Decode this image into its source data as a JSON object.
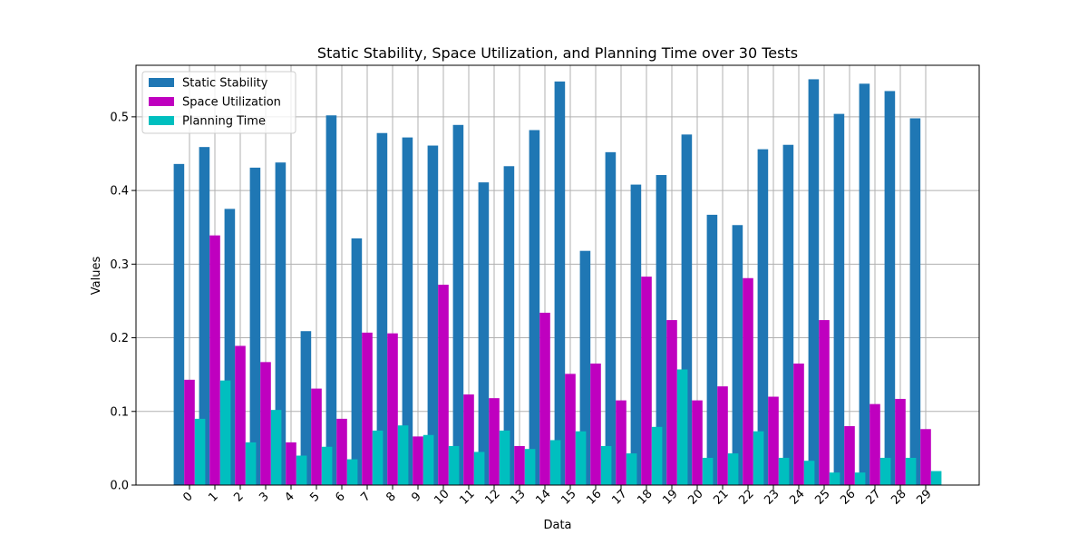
{
  "chart_data": {
    "type": "bar",
    "title": "Static Stability, Space Utilization, and Planning Time over 30 Tests",
    "xlabel": "Data",
    "ylabel": "Values",
    "ylim": [
      0,
      0.57
    ],
    "yticks": [
      0.0,
      0.1,
      0.2,
      0.3,
      0.4,
      0.5
    ],
    "ytick_labels": [
      "0.0",
      "0.1",
      "0.2",
      "0.3",
      "0.4",
      "0.5"
    ],
    "grid": true,
    "legend_position": "top-left",
    "categories": [
      "0",
      "1",
      "2",
      "3",
      "4",
      "5",
      "6",
      "7",
      "8",
      "9",
      "10",
      "11",
      "12",
      "13",
      "14",
      "15",
      "16",
      "17",
      "18",
      "19",
      "20",
      "21",
      "22",
      "23",
      "24",
      "25",
      "26",
      "27",
      "28",
      "29"
    ],
    "series": [
      {
        "name": "Static Stability",
        "color": "#1f77b4",
        "values": [
          0.436,
          0.459,
          0.375,
          0.431,
          0.438,
          0.209,
          0.502,
          0.335,
          0.478,
          0.472,
          0.461,
          0.489,
          0.411,
          0.433,
          0.482,
          0.548,
          0.318,
          0.452,
          0.408,
          0.421,
          0.476,
          0.367,
          0.353,
          0.456,
          0.462,
          0.551,
          0.504,
          0.545,
          0.535,
          0.498
        ]
      },
      {
        "name": "Space Utilization",
        "color": "#bf00bf",
        "values": [
          0.143,
          0.339,
          0.189,
          0.167,
          0.058,
          0.131,
          0.09,
          0.207,
          0.206,
          0.066,
          0.272,
          0.123,
          0.118,
          0.053,
          0.234,
          0.151,
          0.165,
          0.115,
          0.283,
          0.224,
          0.115,
          0.134,
          0.281,
          0.12,
          0.165,
          0.224,
          0.08,
          0.11,
          0.117,
          0.076
        ]
      },
      {
        "name": "Planning Time",
        "color": "#00bfbf",
        "values": [
          0.09,
          0.142,
          0.058,
          0.102,
          0.04,
          0.052,
          0.035,
          0.074,
          0.081,
          0.068,
          0.053,
          0.045,
          0.074,
          0.049,
          0.061,
          0.073,
          0.053,
          0.043,
          0.079,
          0.157,
          0.037,
          0.043,
          0.073,
          0.037,
          0.033,
          0.017,
          0.017,
          0.037,
          0.037,
          0.019
        ]
      }
    ]
  }
}
